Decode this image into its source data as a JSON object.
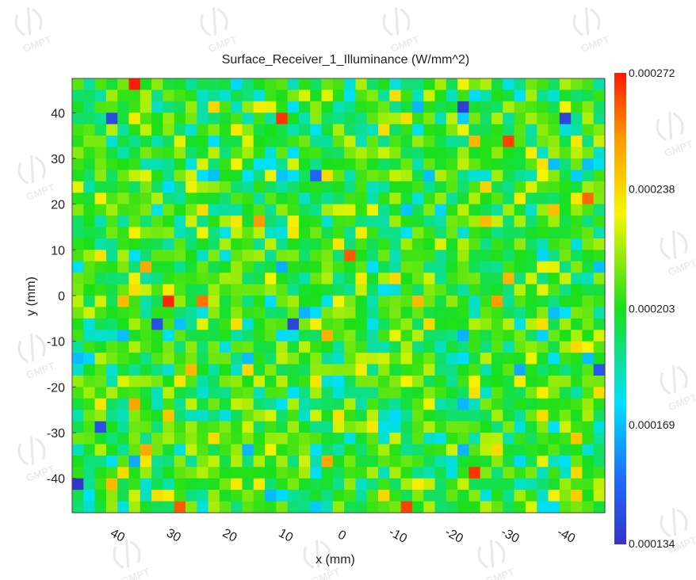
{
  "chart_data": {
    "type": "heatmap",
    "title": "Surface_Receiver_1_Illuminance (W/mm^2)",
    "xlabel": "x (mm)",
    "ylabel": "y (mm)",
    "x_ticks": [
      40,
      30,
      20,
      10,
      0,
      -10,
      -20,
      -30,
      -40
    ],
    "y_ticks": [
      40,
      30,
      20,
      10,
      0,
      -10,
      -20,
      -30,
      -40
    ],
    "xlim": [
      47.5,
      -47.5
    ],
    "ylim": [
      -47.5,
      47.5
    ],
    "grid": "off",
    "colorbar": {
      "min": 0.000134,
      "max": 0.000272,
      "ticks": [
        "0.000272",
        "0.000238",
        "0.000203",
        "0.000169",
        "0.000134"
      ],
      "colormap": "jet"
    },
    "grid_cols": 47,
    "grid_rows": 38,
    "value_distribution": {
      "mean": 0.000203,
      "spread": 1.7e-05,
      "description": "noisy, roughly uniform illuminance centered near 0.000203 W/mm^2"
    },
    "hot_cells": [
      {
        "x": 35.8,
        "y": 46.2,
        "value": 0.000272
      },
      {
        "x": 10.7,
        "y": 37.6,
        "value": 0.000268
      },
      {
        "x": -29.8,
        "y": 33.5,
        "value": 0.000266
      },
      {
        "x": 31.3,
        "y": -1.5,
        "value": 0.00027
      },
      {
        "x": -1.1,
        "y": 9.5,
        "value": 0.000262
      },
      {
        "x": -24.5,
        "y": -37.5,
        "value": 0.000268
      },
      {
        "x": -11.8,
        "y": -46.5,
        "value": 0.000266
      },
      {
        "x": 27.4,
        "y": -46.5,
        "value": 0.000262
      }
    ],
    "cold_cells": [
      {
        "x": 46.9,
        "y": -41.2,
        "value": 0.000134
      },
      {
        "x": 39.5,
        "y": 37.6,
        "value": 0.000142
      },
      {
        "x": -21.8,
        "y": 41.6,
        "value": 0.000138
      },
      {
        "x": -41.3,
        "y": 37.6,
        "value": 0.00014
      },
      {
        "x": -45.8,
        "y": -17.0,
        "value": 0.000146
      },
      {
        "x": 33.1,
        "y": -5.7,
        "value": 0.000144
      },
      {
        "x": 7.6,
        "y": -7.4,
        "value": 0.00014
      },
      {
        "x": 42.1,
        "y": -29.8,
        "value": 0.000144
      },
      {
        "x": 3.1,
        "y": 27.0,
        "value": 0.00015
      }
    ]
  },
  "watermark": {
    "text": "GMPT",
    "color": "#e9e9e9"
  }
}
